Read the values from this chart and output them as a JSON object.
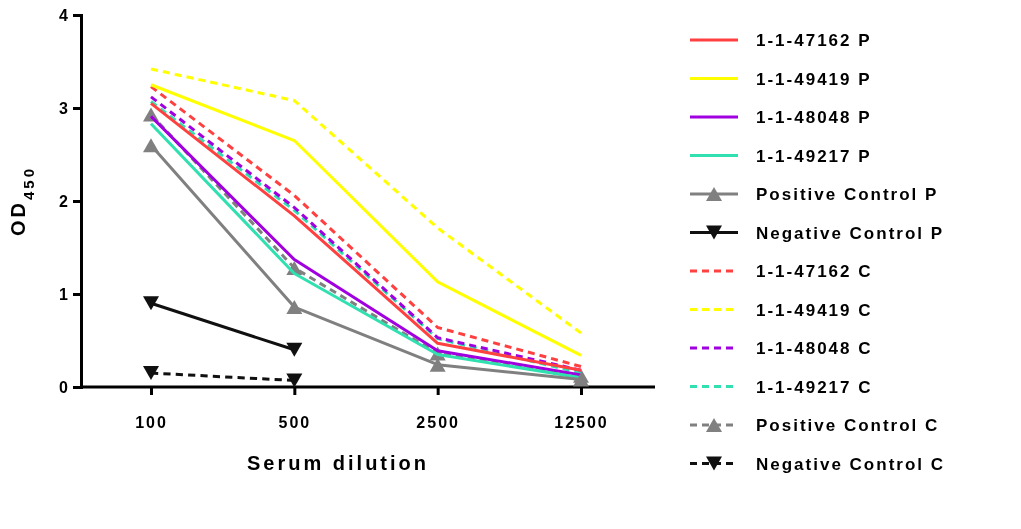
{
  "chart_data": {
    "type": "line",
    "xlabel": "Serum dilution",
    "ylabel": "OD$_{450}$",
    "categories": [
      "100",
      "500",
      "2500",
      "12500"
    ],
    "ylim": [
      0,
      4
    ],
    "yticks": [
      0,
      1,
      2,
      3,
      4
    ],
    "grid": false,
    "legend": "right",
    "series": [
      {
        "name": "1-1-47162 P",
        "color": "#ff4040",
        "values": [
          3.05,
          1.84,
          0.47,
          0.18
        ],
        "line_style": "solid",
        "marker": "none"
      },
      {
        "name": "1-1-49419 P",
        "color": "#ffff00",
        "values": [
          3.25,
          2.65,
          1.13,
          0.34
        ],
        "line_style": "solid",
        "marker": "none"
      },
      {
        "name": "1-1-48048 P",
        "color": "#a000e0",
        "values": [
          2.91,
          1.37,
          0.39,
          0.13
        ],
        "line_style": "solid",
        "marker": "none"
      },
      {
        "name": "1-1-49217 P",
        "color": "#30e0b0",
        "values": [
          2.83,
          1.22,
          0.35,
          0.1
        ],
        "line_style": "solid",
        "marker": "none"
      },
      {
        "name": "Positive Control P",
        "color": "#808080",
        "values": [
          2.6,
          0.86,
          0.24,
          0.08
        ],
        "line_style": "solid",
        "marker": "triangle"
      },
      {
        "name": "Negative Control  P",
        "color": "#101010",
        "values": [
          0.9,
          0.4,
          null,
          null
        ],
        "line_style": "solid",
        "marker": "triangle-down"
      },
      {
        "name": "1-1-47162 C",
        "color": "#ff4040",
        "values": [
          3.23,
          2.06,
          0.64,
          0.22
        ],
        "line_style": "dashed",
        "marker": "none"
      },
      {
        "name": "1-1-49419 C",
        "color": "#ffff00",
        "values": [
          3.42,
          3.08,
          1.71,
          0.58
        ],
        "line_style": "dashed",
        "marker": "none"
      },
      {
        "name": "1-1-48048 C",
        "color": "#a000e0",
        "values": [
          3.12,
          1.93,
          0.53,
          0.18
        ],
        "line_style": "dashed",
        "marker": "none"
      },
      {
        "name": "1-1-49217 C",
        "color": "#30e0b0",
        "values": [
          3.07,
          1.9,
          0.52,
          0.15
        ],
        "line_style": "dashed",
        "marker": "none"
      },
      {
        "name": "Positive Control C",
        "color": "#808080",
        "values": [
          2.93,
          1.28,
          0.36,
          0.12
        ],
        "line_style": "dashed",
        "marker": "triangle"
      },
      {
        "name": "Negative Control C",
        "color": "#101010",
        "values": [
          0.15,
          0.07,
          null,
          null
        ],
        "line_style": "dashed",
        "marker": "triangle-down"
      }
    ]
  }
}
